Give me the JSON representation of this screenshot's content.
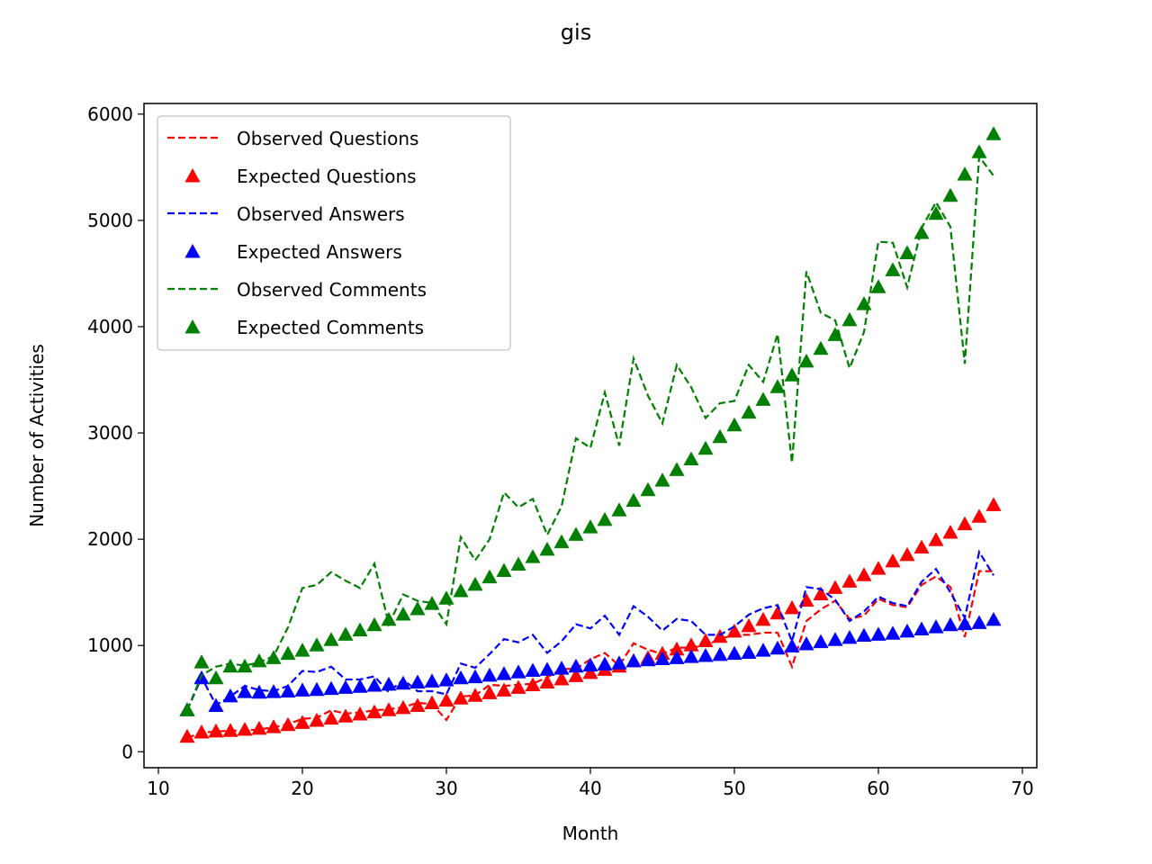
{
  "chart_data": {
    "type": "line",
    "title": "gis",
    "xlabel": "Month",
    "ylabel": "Number of Activities",
    "xlim": [
      9,
      71
    ],
    "ylim": [
      -150,
      6100
    ],
    "xticks": [
      10,
      20,
      30,
      40,
      50,
      60,
      70
    ],
    "yticks": [
      0,
      1000,
      2000,
      3000,
      4000,
      5000,
      6000
    ],
    "grid": false,
    "legend_position": "upper-left",
    "x": [
      12,
      13,
      14,
      15,
      16,
      17,
      18,
      19,
      20,
      21,
      22,
      23,
      24,
      25,
      26,
      27,
      28,
      29,
      30,
      31,
      32,
      33,
      34,
      35,
      36,
      37,
      38,
      39,
      40,
      41,
      42,
      43,
      44,
      45,
      46,
      47,
      48,
      49,
      50,
      51,
      52,
      53,
      54,
      55,
      56,
      57,
      58,
      59,
      60,
      61,
      62,
      63,
      64,
      65,
      66,
      67,
      68
    ],
    "series": [
      {
        "name": "Observed Questions",
        "style": "dashed",
        "color": "#ff0000",
        "values": [
          130,
          180,
          190,
          200,
          200,
          210,
          230,
          260,
          310,
          320,
          390,
          360,
          370,
          390,
          400,
          420,
          460,
          450,
          300,
          520,
          530,
          630,
          620,
          630,
          640,
          700,
          780,
          780,
          870,
          930,
          810,
          1020,
          960,
          920,
          980,
          980,
          1000,
          1060,
          1100,
          1100,
          1120,
          1120,
          800,
          1230,
          1340,
          1420,
          1250,
          1280,
          1440,
          1380,
          1360,
          1570,
          1650,
          1550,
          1080,
          1700,
          1700
        ]
      },
      {
        "name": "Expected Questions",
        "style": "triangle",
        "color": "#ff0000",
        "values": [
          140,
          180,
          190,
          195,
          205,
          215,
          230,
          250,
          270,
          290,
          310,
          330,
          350,
          370,
          390,
          410,
          430,
          455,
          480,
          500,
          525,
          550,
          575,
          600,
          625,
          650,
          680,
          710,
          740,
          770,
          800,
          850,
          880,
          920,
          960,
          1000,
          1040,
          1080,
          1130,
          1180,
          1240,
          1300,
          1350,
          1420,
          1480,
          1540,
          1600,
          1660,
          1720,
          1790,
          1850,
          1920,
          1990,
          2060,
          2140,
          2210,
          2320
        ]
      },
      {
        "name": "Observed Answers",
        "style": "dashed",
        "color": "#0000ff",
        "values": [
          390,
          700,
          440,
          520,
          620,
          580,
          570,
          620,
          760,
          750,
          800,
          680,
          680,
          710,
          560,
          680,
          570,
          570,
          540,
          830,
          790,
          920,
          1060,
          1030,
          1100,
          930,
          1040,
          1200,
          1160,
          1280,
          1100,
          1370,
          1270,
          1140,
          1250,
          1230,
          1100,
          1100,
          1180,
          1290,
          1350,
          1380,
          1040,
          1550,
          1530,
          1430,
          1230,
          1320,
          1460,
          1400,
          1370,
          1600,
          1720,
          1500,
          1260,
          1880,
          1660
        ]
      },
      {
        "name": "Expected Answers",
        "style": "triangle",
        "color": "#0000ff",
        "values": [
          390,
          690,
          430,
          520,
          560,
          555,
          560,
          565,
          575,
          580,
          590,
          600,
          610,
          620,
          630,
          640,
          650,
          660,
          670,
          690,
          700,
          715,
          730,
          745,
          760,
          770,
          780,
          800,
          810,
          820,
          830,
          850,
          860,
          870,
          880,
          890,
          900,
          910,
          920,
          930,
          950,
          970,
          990,
          1010,
          1030,
          1050,
          1070,
          1090,
          1100,
          1110,
          1130,
          1150,
          1170,
          1190,
          1200,
          1210,
          1240
        ]
      },
      {
        "name": "Observed Comments",
        "style": "dashed",
        "color": "#008000",
        "values": [
          390,
          720,
          800,
          830,
          810,
          840,
          900,
          1170,
          1540,
          1570,
          1690,
          1610,
          1540,
          1770,
          1200,
          1480,
          1420,
          1400,
          1200,
          2020,
          1800,
          2000,
          2440,
          2300,
          2380,
          2040,
          2310,
          2950,
          2860,
          3380,
          2880,
          3700,
          3350,
          3090,
          3640,
          3430,
          3140,
          3280,
          3300,
          3640,
          3480,
          3930,
          2720,
          4520,
          4130,
          4060,
          3610,
          3950,
          4800,
          4790,
          4370,
          4930,
          5170,
          4940,
          3650,
          5600,
          5420
        ]
      },
      {
        "name": "Expected Comments",
        "style": "triangle",
        "color": "#008000",
        "values": [
          390,
          840,
          690,
          800,
          800,
          850,
          880,
          920,
          950,
          1000,
          1050,
          1100,
          1140,
          1190,
          1240,
          1290,
          1340,
          1390,
          1440,
          1510,
          1570,
          1640,
          1700,
          1760,
          1830,
          1900,
          1970,
          2040,
          2110,
          2180,
          2270,
          2360,
          2460,
          2550,
          2650,
          2750,
          2850,
          2960,
          3070,
          3190,
          3310,
          3430,
          3540,
          3670,
          3790,
          3920,
          4060,
          4210,
          4370,
          4530,
          4690,
          4880,
          5060,
          5230,
          5430,
          5640,
          5810
        ]
      }
    ]
  }
}
